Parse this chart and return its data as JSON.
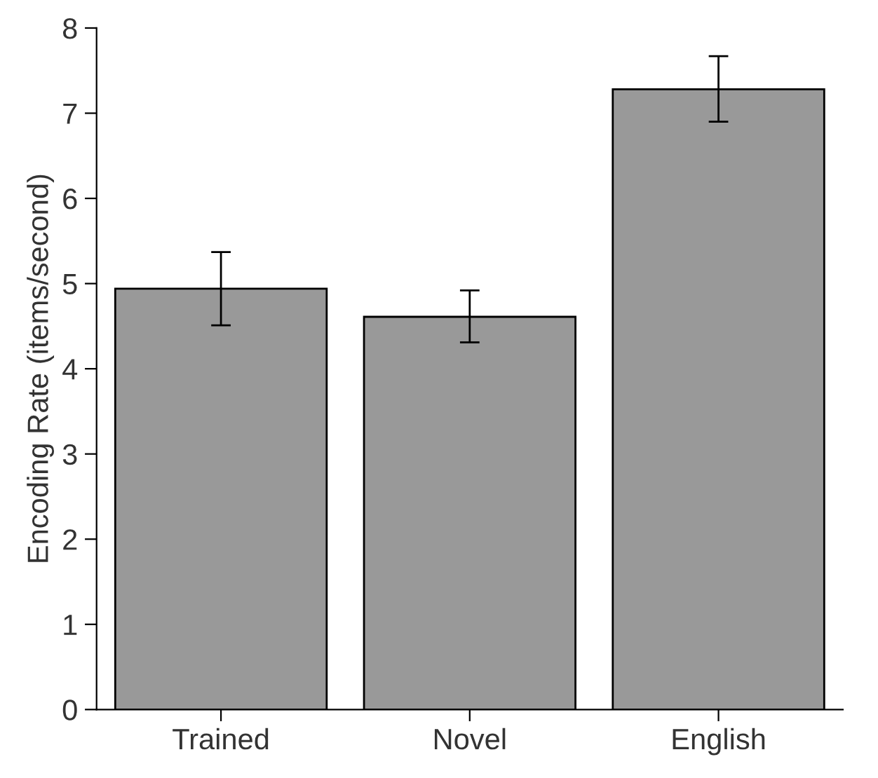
{
  "chart_data": {
    "type": "bar",
    "ylabel": "Encoding Rate (items/second)",
    "categories": [
      "Trained",
      "Novel",
      "English"
    ],
    "values": [
      4.94,
      4.61,
      7.28
    ],
    "errors": [
      [
        4.51,
        5.37
      ],
      [
        4.31,
        4.92
      ],
      [
        6.9,
        7.67
      ]
    ],
    "color": "#999999",
    "ylim": [
      0,
      8
    ],
    "yticks": [
      0,
      1,
      2,
      3,
      4,
      5,
      6,
      7,
      8
    ],
    "grid": false,
    "legend": false
  }
}
